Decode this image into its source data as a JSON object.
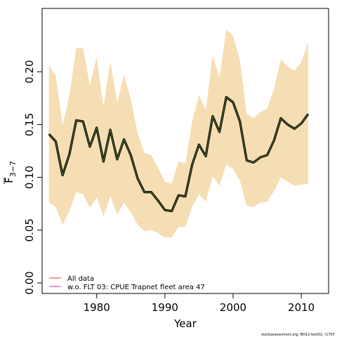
{
  "chart_data": {
    "type": "line",
    "xlabel": "Year",
    "ylabel_main": "F",
    "ylabel_sub": "3−7",
    "xlim": [
      1972,
      2014
    ],
    "ylim": [
      -0.01,
      0.26
    ],
    "x_ticks": [
      1980,
      1990,
      2000,
      2010
    ],
    "y_ticks": [
      "0.00",
      "0.05",
      "0.10",
      "0.15",
      "0.20"
    ],
    "colors": {
      "band": "#f5deb3",
      "outer_line": "#000000",
      "inner_line": "#556b2f",
      "legend_all": "#f08080",
      "legend_wo": "#da70d6"
    },
    "series": [
      {
        "name": "All data",
        "x": [
          1973,
          1974,
          1975,
          1976,
          1977,
          1978,
          1979,
          1980,
          1981,
          1982,
          1983,
          1984,
          1985,
          1986,
          1987,
          1988,
          1989,
          1990,
          1991,
          1992,
          1993,
          1994,
          1995,
          1996,
          1997,
          1998,
          1999,
          2000,
          2001,
          2002,
          2003,
          2004,
          2005,
          2006,
          2007,
          2008,
          2009,
          2010,
          2011
        ],
        "values": [
          0.141,
          0.134,
          0.102,
          0.122,
          0.154,
          0.153,
          0.129,
          0.147,
          0.115,
          0.145,
          0.117,
          0.136,
          0.121,
          0.099,
          0.086,
          0.086,
          0.078,
          0.069,
          0.068,
          0.083,
          0.082,
          0.112,
          0.131,
          0.12,
          0.158,
          0.143,
          0.176,
          0.171,
          0.153,
          0.116,
          0.114,
          0.119,
          0.121,
          0.135,
          0.156,
          0.15,
          0.146,
          0.151,
          0.16
        ],
        "lower": [
          0.076,
          0.072,
          0.055,
          0.068,
          0.086,
          0.084,
          0.071,
          0.081,
          0.063,
          0.082,
          0.065,
          0.076,
          0.067,
          0.055,
          0.049,
          0.05,
          0.047,
          0.043,
          0.043,
          0.053,
          0.053,
          0.072,
          0.084,
          0.077,
          0.101,
          0.092,
          0.112,
          0.108,
          0.097,
          0.073,
          0.072,
          0.076,
          0.077,
          0.087,
          0.1,
          0.096,
          0.092,
          0.093,
          0.094
        ],
        "upper": [
          0.206,
          0.196,
          0.149,
          0.178,
          0.223,
          0.222,
          0.187,
          0.214,
          0.167,
          0.21,
          0.17,
          0.197,
          0.174,
          0.142,
          0.123,
          0.121,
          0.109,
          0.096,
          0.094,
          0.115,
          0.113,
          0.153,
          0.178,
          0.164,
          0.215,
          0.195,
          0.24,
          0.234,
          0.211,
          0.16,
          0.156,
          0.162,
          0.165,
          0.184,
          0.212,
          0.205,
          0.201,
          0.209,
          0.228
        ]
      },
      {
        "name": "w.o. FLT 03: CPUE Trapnet fleet area 47",
        "x": [
          1973,
          1974,
          1975,
          1976,
          1977,
          1978,
          1979,
          1980,
          1981,
          1982,
          1983,
          1984,
          1985,
          1986,
          1987,
          1988,
          1989,
          1990,
          1991,
          1992,
          1993,
          1994,
          1995,
          1996,
          1997,
          1998,
          1999,
          2000,
          2001,
          2002,
          2003,
          2004,
          2005,
          2006,
          2007,
          2008,
          2009,
          2010,
          2011
        ],
        "values": [
          0.141,
          0.134,
          0.102,
          0.122,
          0.154,
          0.153,
          0.129,
          0.147,
          0.115,
          0.145,
          0.117,
          0.136,
          0.121,
          0.099,
          0.086,
          0.086,
          0.078,
          0.069,
          0.068,
          0.083,
          0.082,
          0.112,
          0.131,
          0.12,
          0.158,
          0.143,
          0.176,
          0.171,
          0.153,
          0.116,
          0.114,
          0.119,
          0.121,
          0.135,
          0.156,
          0.15,
          0.146,
          0.151,
          0.16
        ]
      }
    ],
    "legend": {
      "position": "bottom-left",
      "entries": [
        "All data",
        "w.o. FLT 03: CPUE Trapnet fleet area 47"
      ]
    },
    "footer": "stockassessment.org, BH12-test02, r1707"
  }
}
